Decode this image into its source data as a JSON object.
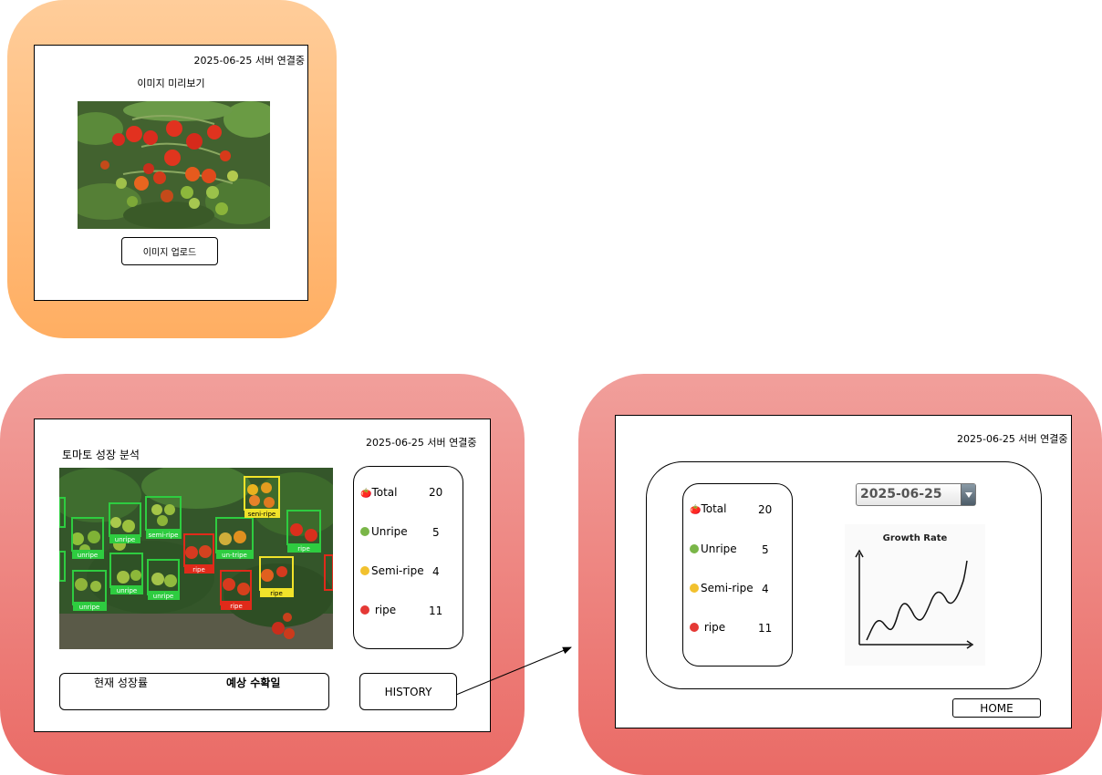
{
  "screens": {
    "preview": {
      "status": "2025-06-25 서버 연결중",
      "title": "이미지 미리보기",
      "upload_button": "이미지 업로드"
    },
    "analysis": {
      "status": "2025-06-25 서버 연결중",
      "title": "토마토 성장 분석",
      "growth_rate_label": "현재 성장률",
      "harvest_label": "예상 수확일",
      "history_button": "HISTORY",
      "detections": [
        "unripe",
        "unripe",
        "semi-ripe",
        "semi-ripe",
        "ripe",
        "un-tripe",
        "ripe",
        "unripe",
        "unripe",
        "unripe",
        "ripe",
        "ripe",
        "ripe"
      ],
      "stats": [
        {
          "label": "Total",
          "value": "20",
          "icon": "tomato-icon"
        },
        {
          "label": "Unripe",
          "value": "5",
          "icon": "green-dot-icon",
          "color": "#7ab648"
        },
        {
          "label": "Semi-ripe",
          "value": "4",
          "icon": "yellow-dot-icon",
          "color": "#f2c12e"
        },
        {
          "label": " ripe",
          "value": "11",
          "icon": "red-dot-icon",
          "color": "#e53935"
        }
      ]
    },
    "history": {
      "status": "2025-06-25 서버 연결중",
      "date_select": "2025-06-25",
      "chart_title": "Growth Rate",
      "home_button": "HOME",
      "stats": [
        {
          "label": "Total",
          "value": "20",
          "icon": "tomato-icon"
        },
        {
          "label": "Unripe",
          "value": "5",
          "icon": "green-dot-icon",
          "color": "#7ab648"
        },
        {
          "label": "Semi-ripe",
          "value": "4",
          "icon": "yellow-dot-icon",
          "color": "#f2c12e"
        },
        {
          "label": " ripe",
          "value": "11",
          "icon": "red-dot-icon",
          "color": "#e53935"
        }
      ]
    }
  },
  "colors": {
    "orange_panel": "#ffae62",
    "red_panel": "#ea6b66",
    "unripe_box": "#2ecc40",
    "semiripe_box": "#f1e32a",
    "ripe_box": "#e02a1a"
  }
}
